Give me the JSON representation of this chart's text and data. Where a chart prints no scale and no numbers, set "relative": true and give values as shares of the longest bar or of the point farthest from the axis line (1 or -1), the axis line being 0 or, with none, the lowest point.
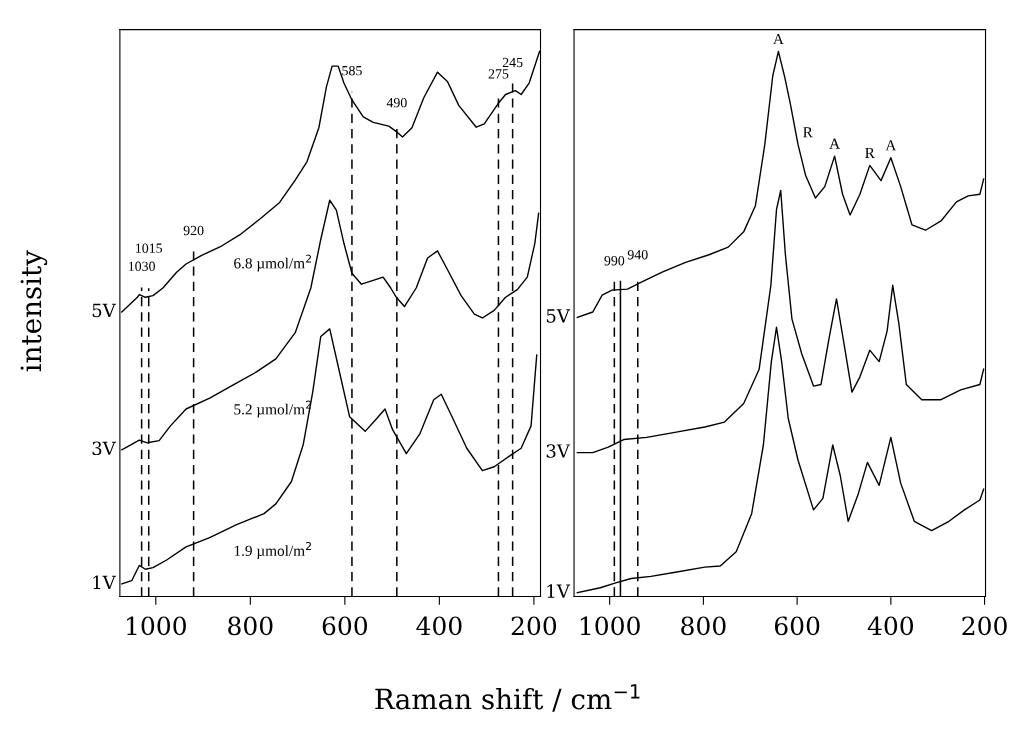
{
  "chart_data": [
    {
      "type": "line",
      "relative": true,
      "xlabel": "Raman shift / cm$^{−1}$",
      "ylabel": "intensity",
      "xlim": [
        1076,
        186
      ],
      "xticks": [
        1000,
        800,
        600,
        400,
        200
      ],
      "grid": false,
      "legend": false,
      "marker": "none",
      "line_style": "solid",
      "series": [
        {
          "name": "5V",
          "color": "#000000",
          "x": [
            1072,
            1039,
            1035,
            1022,
            1006,
            985,
            956,
            936,
            903,
            861,
            820,
            779,
            738,
            705,
            680,
            655,
            639,
            627,
            614,
            602,
            585,
            561,
            540,
            507,
            491,
            478,
            458,
            433,
            404,
            383,
            359,
            322,
            305,
            276,
            260,
            239,
            227,
            210,
            188
          ],
          "values": [
            0.522,
            0.549,
            0.554,
            0.549,
            0.552,
            0.566,
            0.595,
            0.61,
            0.626,
            0.643,
            0.665,
            0.693,
            0.723,
            0.764,
            0.798,
            0.86,
            0.935,
            0.973,
            0.973,
            0.942,
            0.911,
            0.88,
            0.87,
            0.863,
            0.853,
            0.843,
            0.86,
            0.915,
            0.962,
            0.945,
            0.901,
            0.861,
            0.867,
            0.904,
            0.921,
            0.928,
            0.921,
            0.942,
            1.0
          ]
        },
        {
          "name": "3V",
          "color": "#000000",
          "x": [
            1072,
            1051,
            1035,
            1018,
            993,
            969,
            936,
            886,
            837,
            787,
            746,
            705,
            672,
            651,
            632,
            618,
            602,
            585,
            565,
            540,
            519,
            503,
            491,
            474,
            449,
            425,
            404,
            383,
            354,
            326,
            309,
            284,
            260,
            235,
            214,
            198,
            190
          ],
          "values": [
            0.269,
            0.279,
            0.287,
            0.282,
            0.286,
            0.313,
            0.344,
            0.364,
            0.388,
            0.412,
            0.436,
            0.484,
            0.566,
            0.655,
            0.727,
            0.709,
            0.648,
            0.593,
            0.573,
            0.58,
            0.586,
            0.566,
            0.549,
            0.532,
            0.566,
            0.621,
            0.634,
            0.6,
            0.552,
            0.518,
            0.511,
            0.525,
            0.549,
            0.563,
            0.586,
            0.648,
            0.703
          ]
        },
        {
          "name": "1V",
          "color": "#000000",
          "x": [
            1072,
            1051,
            1035,
            1022,
            1006,
            977,
            936,
            886,
            829,
            771,
            746,
            713,
            688,
            668,
            651,
            632,
            614,
            590,
            557,
            532,
            515,
            499,
            470,
            441,
            412,
            396,
            375,
            342,
            309,
            284,
            251,
            227,
            206,
            194
          ],
          "values": [
            0.023,
            0.029,
            0.057,
            0.05,
            0.053,
            0.067,
            0.091,
            0.108,
            0.132,
            0.152,
            0.17,
            0.211,
            0.279,
            0.375,
            0.477,
            0.491,
            0.422,
            0.33,
            0.303,
            0.327,
            0.344,
            0.306,
            0.262,
            0.299,
            0.361,
            0.371,
            0.333,
            0.272,
            0.231,
            0.238,
            0.258,
            0.272,
            0.313,
            0.443
          ]
        }
      ],
      "ref_lines": [
        {
          "axis": "x",
          "value": 1030,
          "label": "1030",
          "line_style": "dashed",
          "color": "#000000"
        },
        {
          "axis": "x",
          "value": 1015,
          "label": "1015",
          "line_style": "dashed",
          "color": "#000000"
        },
        {
          "axis": "x",
          "value": 920,
          "label": "920",
          "line_style": "dashed",
          "color": "#000000"
        },
        {
          "axis": "x",
          "value": 585,
          "label": "585",
          "line_style": "dashed",
          "color": "#000000"
        },
        {
          "axis": "x",
          "value": 490,
          "label": "490",
          "line_style": "dashed",
          "color": "#000000"
        },
        {
          "axis": "x",
          "value": 275,
          "label": "275",
          "line_style": "dashed",
          "color": "#000000"
        },
        {
          "axis": "x",
          "value": 245,
          "label": "245",
          "line_style": "dashed",
          "color": "#000000"
        }
      ],
      "annotations": [
        "6.8 µmol/m$^{2}$",
        "5.2 µmol/m$^{2}$",
        "1.9 µmol/m$^{2}$"
      ]
    },
    {
      "type": "line",
      "relative": true,
      "xlim": [
        1076,
        198
      ],
      "xticks": [
        1000,
        800,
        600,
        400,
        200
      ],
      "grid": false,
      "legend": false,
      "marker": "none",
      "line_style": "solid",
      "series": [
        {
          "name": "5V",
          "color": "#000000",
          "x": [
            1069,
            1036,
            1016,
            995,
            962,
            929,
            888,
            838,
            788,
            747,
            714,
            689,
            669,
            652,
            640,
            627,
            615,
            598,
            582,
            561,
            541,
            520,
            503,
            487,
            466,
            445,
            421,
            400,
            379,
            355,
            326,
            293,
            260,
            235,
            210,
            202
          ],
          "values": [
            0.512,
            0.522,
            0.553,
            0.562,
            0.564,
            0.578,
            0.595,
            0.613,
            0.627,
            0.641,
            0.669,
            0.717,
            0.829,
            0.955,
            1.0,
            0.955,
            0.906,
            0.829,
            0.773,
            0.731,
            0.752,
            0.808,
            0.738,
            0.7,
            0.738,
            0.791,
            0.763,
            0.805,
            0.752,
            0.682,
            0.672,
            0.689,
            0.724,
            0.735,
            0.738,
            0.766
          ]
        },
        {
          "name": "3V",
          "color": "#000000",
          "x": [
            1069,
            1036,
            1003,
            970,
            921,
            855,
            797,
            755,
            714,
            681,
            656,
            644,
            635,
            625,
            611,
            590,
            565,
            549,
            532,
            516,
            499,
            483,
            466,
            445,
            425,
            408,
            396,
            383,
            367,
            334,
            293,
            251,
            210,
            202
          ],
          "values": [
            0.264,
            0.264,
            0.274,
            0.288,
            0.292,
            0.302,
            0.311,
            0.32,
            0.354,
            0.417,
            0.571,
            0.71,
            0.745,
            0.627,
            0.509,
            0.445,
            0.386,
            0.389,
            0.473,
            0.546,
            0.459,
            0.375,
            0.403,
            0.452,
            0.431,
            0.487,
            0.571,
            0.501,
            0.389,
            0.361,
            0.361,
            0.379,
            0.389,
            0.417
          ]
        },
        {
          "name": "1V",
          "color": "#000000",
          "x": [
            1069,
            1020,
            987,
            954,
            912,
            863,
            797,
            764,
            730,
            697,
            672,
            655,
            644,
            633,
            619,
            598,
            565,
            545,
            524,
            508,
            491,
            470,
            450,
            425,
            400,
            379,
            350,
            313,
            276,
            243,
            210,
            202
          ],
          "values": [
            0.007,
            0.016,
            0.025,
            0.033,
            0.037,
            0.044,
            0.054,
            0.056,
            0.082,
            0.152,
            0.278,
            0.431,
            0.494,
            0.431,
            0.327,
            0.25,
            0.159,
            0.18,
            0.278,
            0.222,
            0.138,
            0.187,
            0.246,
            0.204,
            0.292,
            0.208,
            0.138,
            0.121,
            0.138,
            0.159,
            0.177,
            0.197
          ]
        }
      ],
      "ref_lines": [
        {
          "axis": "x",
          "value": 990,
          "label": "990",
          "line_style": "dashed",
          "color": "#000000"
        },
        {
          "axis": "x",
          "value": 977,
          "label": null,
          "line_style": "solid",
          "color": "#000000"
        },
        {
          "axis": "x",
          "value": 940,
          "label": "940",
          "line_style": "dashed",
          "color": "#000000"
        }
      ],
      "annotations": [
        {
          "text": "A",
          "x": 640,
          "y": 1.0
        },
        {
          "text": "R",
          "x": 598,
          "y": 0.829
        },
        {
          "text": "A",
          "x": 520,
          "y": 0.808
        },
        {
          "text": "R",
          "x": 445,
          "y": 0.791
        },
        {
          "text": "A",
          "x": 400,
          "y": 0.805
        }
      ]
    }
  ]
}
